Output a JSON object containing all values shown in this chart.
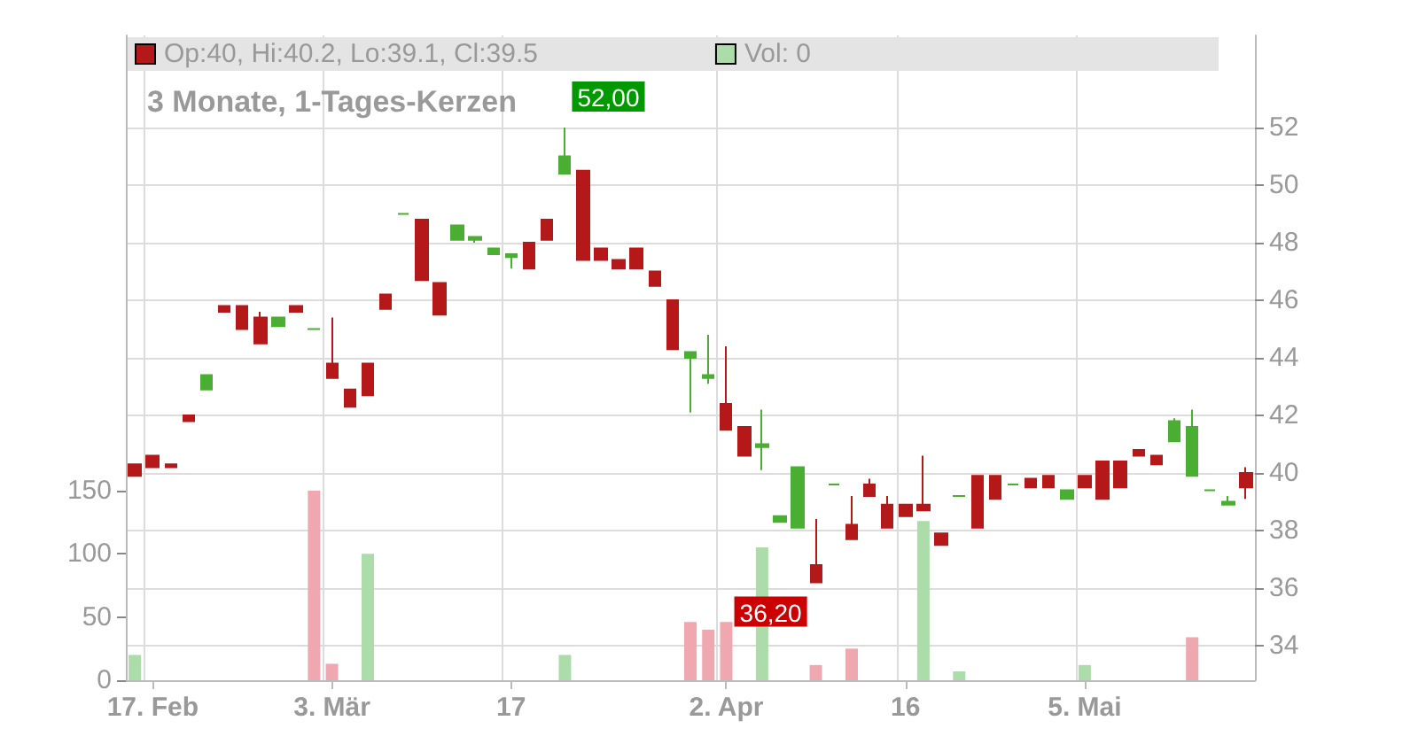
{
  "chart_data": {
    "type": "candlestick",
    "title": "3 Monate, 1-Tages-Kerzen",
    "categories": [
      null,
      "17. Feb",
      null,
      null,
      null,
      null,
      null,
      null,
      null,
      null,
      null,
      "3. Mär",
      null,
      null,
      null,
      null,
      null,
      null,
      null,
      null,
      null,
      "17",
      null,
      null,
      null,
      null,
      null,
      null,
      null,
      null,
      null,
      null,
      null,
      "2. Apr",
      null,
      null,
      null,
      null,
      null,
      null,
      null,
      null,
      null,
      "16",
      null,
      null,
      null,
      null,
      null,
      null,
      null,
      null,
      null,
      "5. Mai",
      null,
      null,
      null,
      null,
      null,
      null,
      null,
      null,
      null
    ],
    "series": [
      {
        "name": "Op:40, Hi:40.2, Lo:39.1, Cl:39.5",
        "color": "#b41818",
        "ohlc": [
          [
            40.3,
            40.3,
            39.9,
            39.9
          ],
          [
            40.6,
            40.6,
            40.2,
            40.2
          ],
          [
            40.3,
            40.3,
            40.2,
            40.2
          ],
          [
            42.0,
            42.0,
            41.8,
            41.8
          ],
          [
            42.9,
            43.4,
            42.9,
            43.4
          ],
          [
            45.8,
            45.8,
            45.6,
            45.6
          ],
          [
            45.8,
            45.8,
            45.0,
            45.0
          ],
          [
            45.4,
            45.6,
            44.5,
            44.5
          ],
          [
            45.1,
            45.4,
            45.1,
            45.4
          ],
          [
            45.8,
            45.8,
            45.6,
            45.6
          ],
          [
            45.0,
            45.0,
            45.0,
            45.0
          ],
          [
            43.8,
            45.4,
            43.3,
            43.3
          ],
          [
            42.9,
            42.9,
            42.3,
            42.3
          ],
          [
            43.8,
            43.8,
            42.7,
            42.7
          ],
          [
            46.2,
            46.2,
            45.7,
            45.7
          ],
          [
            49.0,
            49.0,
            49.0,
            49.0
          ],
          [
            48.8,
            48.8,
            46.7,
            46.7
          ],
          [
            46.6,
            46.6,
            45.5,
            45.5
          ],
          [
            48.1,
            48.6,
            48.1,
            48.6
          ],
          [
            48.1,
            48.2,
            48.0,
            48.2
          ],
          [
            47.6,
            47.8,
            47.6,
            47.8
          ],
          [
            47.5,
            47.6,
            47.1,
            47.6
          ],
          [
            48.0,
            48.0,
            47.1,
            47.1
          ],
          [
            48.8,
            48.8,
            48.1,
            48.1
          ],
          [
            50.4,
            52.0,
            50.4,
            51.0
          ],
          [
            50.5,
            50.5,
            47.4,
            47.4
          ],
          [
            47.8,
            47.8,
            47.4,
            47.4
          ],
          [
            47.4,
            47.4,
            47.1,
            47.1
          ],
          [
            47.8,
            47.8,
            47.1,
            47.1
          ],
          [
            47.0,
            47.0,
            46.5,
            46.5
          ],
          [
            46.0,
            46.0,
            44.3,
            44.3
          ],
          [
            44.0,
            44.2,
            42.1,
            44.2
          ],
          [
            43.3,
            44.8,
            43.1,
            43.4
          ],
          [
            42.4,
            44.4,
            41.5,
            41.5
          ],
          [
            41.6,
            41.6,
            40.6,
            40.6
          ],
          [
            40.9,
            42.2,
            40.1,
            41.0
          ],
          [
            38.3,
            38.5,
            38.3,
            38.5
          ],
          [
            38.1,
            40.2,
            38.1,
            40.2
          ],
          [
            36.8,
            38.4,
            36.2,
            36.2
          ],
          [
            39.6,
            39.6,
            39.6,
            39.6
          ],
          [
            38.2,
            39.2,
            37.7,
            37.7
          ],
          [
            39.6,
            39.8,
            39.2,
            39.2
          ],
          [
            38.9,
            39.2,
            38.1,
            38.1
          ],
          [
            38.9,
            38.9,
            38.5,
            38.5
          ],
          [
            38.9,
            40.6,
            38.7,
            38.7
          ],
          [
            37.9,
            37.9,
            37.5,
            37.5
          ],
          [
            39.2,
            39.2,
            39.2,
            39.2
          ],
          [
            39.9,
            39.9,
            38.1,
            38.1
          ],
          [
            39.9,
            39.9,
            39.1,
            39.1
          ],
          [
            39.6,
            39.6,
            39.6,
            39.6
          ],
          [
            39.8,
            39.8,
            39.5,
            39.5
          ],
          [
            39.9,
            39.9,
            39.5,
            39.5
          ],
          [
            39.1,
            39.4,
            39.1,
            39.4
          ],
          [
            39.9,
            39.9,
            39.5,
            39.5
          ],
          [
            40.4,
            40.4,
            39.1,
            39.1
          ],
          [
            40.4,
            40.4,
            39.5,
            39.5
          ],
          [
            40.8,
            40.8,
            40.6,
            40.6
          ],
          [
            40.6,
            40.6,
            40.3,
            40.3
          ],
          [
            41.1,
            41.9,
            41.1,
            41.8
          ],
          [
            39.9,
            42.2,
            39.9,
            41.6
          ],
          [
            39.4,
            39.4,
            39.4,
            39.4
          ],
          [
            38.9,
            39.2,
            38.9,
            39.0
          ],
          [
            40.0,
            40.2,
            39.1,
            39.5
          ]
        ],
        "colors": [
          "#b41818",
          "#b41818",
          "#b41818",
          "#b41818",
          "#4aae32",
          "#b41818",
          "#b41818",
          "#b41818",
          "#4aae32",
          "#b41818",
          "#4aae32",
          "#b41818",
          "#b41818",
          "#b41818",
          "#b41818",
          "#4aae32",
          "#b41818",
          "#b41818",
          "#4aae32",
          "#4aae32",
          "#4aae32",
          "#4aae32",
          "#b41818",
          "#b41818",
          "#4aae32",
          "#b41818",
          "#b41818",
          "#b41818",
          "#b41818",
          "#b41818",
          "#b41818",
          "#4aae32",
          "#4aae32",
          "#b41818",
          "#b41818",
          "#4aae32",
          "#4aae32",
          "#4aae32",
          "#b41818",
          "#4aae32",
          "#b41818",
          "#b41818",
          "#b41818",
          "#b41818",
          "#b41818",
          "#b41818",
          "#4aae32",
          "#b41818",
          "#b41818",
          "#4aae32",
          "#b41818",
          "#b41818",
          "#4aae32",
          "#b41818",
          "#b41818",
          "#b41818",
          "#b41818",
          "#b41818",
          "#4aae32",
          "#4aae32",
          "#4aae32",
          "#4aae32",
          "#b41818"
        ]
      },
      {
        "type": "bar",
        "name": "Vol: 0",
        "axis": "y2",
        "color": "#acdcaa",
        "values": [
          20,
          null,
          null,
          null,
          null,
          null,
          null,
          null,
          null,
          null,
          150,
          13,
          null,
          100,
          null,
          null,
          null,
          null,
          null,
          null,
          null,
          null,
          null,
          null,
          20,
          null,
          null,
          null,
          null,
          null,
          null,
          46,
          40,
          46,
          null,
          105,
          null,
          null,
          12,
          null,
          25,
          null,
          null,
          null,
          126,
          null,
          7,
          null,
          null,
          null,
          null,
          null,
          null,
          12,
          null,
          null,
          null,
          null,
          null,
          34,
          null,
          null,
          0
        ],
        "colors": [
          "#acdcaa",
          null,
          null,
          null,
          null,
          null,
          null,
          null,
          null,
          null,
          "#f0a8b0",
          "#f0a8b0",
          null,
          "#acdcaa",
          null,
          null,
          null,
          null,
          null,
          null,
          null,
          null,
          null,
          null,
          "#acdcaa",
          null,
          null,
          null,
          null,
          null,
          null,
          "#f0a8b0",
          "#f0a8b0",
          "#f0a8b0",
          null,
          "#acdcaa",
          null,
          null,
          "#f0a8b0",
          null,
          "#f0a8b0",
          null,
          null,
          null,
          "#acdcaa",
          null,
          "#acdcaa",
          null,
          null,
          null,
          null,
          null,
          null,
          "#acdcaa",
          null,
          null,
          null,
          null,
          null,
          "#f0a8b0",
          null,
          null,
          "#acdcaa"
        ]
      }
    ],
    "ylim": [
      32.8,
      55.2
    ],
    "yticks": [
      34,
      36,
      38,
      40,
      42,
      44,
      46,
      48,
      50,
      52
    ],
    "y2lim": [
      0,
      510
    ],
    "y2ticks": [
      0,
      50,
      100,
      150
    ],
    "annotations": [
      "52,00",
      "36,20"
    ],
    "grid": true,
    "legend": "top left"
  }
}
